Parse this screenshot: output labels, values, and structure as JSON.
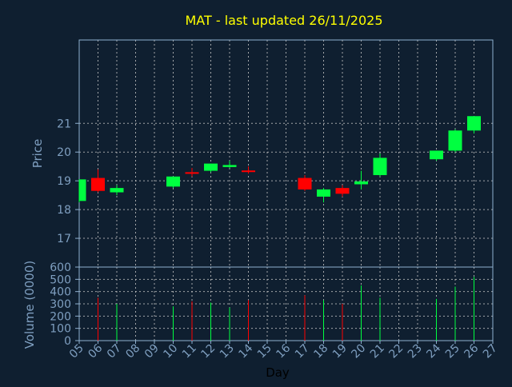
{
  "colors": {
    "background": "#0f1f30",
    "title": "#ffff00",
    "axis_text": "#7f9fc0",
    "frame": "#8fb0d0",
    "grid": "#c8c8c8",
    "up": "#00ff40",
    "down": "#ff0000",
    "xlabel": "#000000"
  },
  "chart_data": {
    "type": "candlestick",
    "title": "MAT - last updated 26/11/2025",
    "xlabel": "Day",
    "ylabel_price": "Price",
    "ylabel_volume": "Volume (0000)",
    "x_ticks": [
      "05",
      "06",
      "07",
      "08",
      "09",
      "10",
      "11",
      "12",
      "13",
      "14",
      "15",
      "16",
      "17",
      "18",
      "19",
      "20",
      "21",
      "22",
      "23",
      "24",
      "25",
      "26",
      "27"
    ],
    "price_ylim": [
      16.0,
      23.9
    ],
    "price_ticks": [
      17,
      18,
      19,
      20,
      21
    ],
    "volume_ylim": [
      0,
      600
    ],
    "volume_ticks": [
      0,
      100,
      200,
      300,
      400,
      500,
      600
    ],
    "grid": true,
    "candles": [
      {
        "day": "05",
        "open": 18.3,
        "high": 19.05,
        "low": 18.25,
        "close": 19.05,
        "volume": 0
      },
      {
        "day": "06",
        "open": 19.1,
        "high": 19.4,
        "low": 18.6,
        "close": 18.65,
        "volume": 350
      },
      {
        "day": "07",
        "open": 18.6,
        "high": 18.85,
        "low": 18.5,
        "close": 18.75,
        "volume": 300
      },
      {
        "day": "10",
        "open": 18.8,
        "high": 19.15,
        "low": 18.75,
        "close": 19.15,
        "volume": 280
      },
      {
        "day": "11",
        "open": 19.3,
        "high": 19.45,
        "low": 19.15,
        "close": 19.25,
        "volume": 320
      },
      {
        "day": "12",
        "open": 19.35,
        "high": 19.6,
        "low": 19.3,
        "close": 19.6,
        "volume": 310
      },
      {
        "day": "13",
        "open": 19.48,
        "high": 19.7,
        "low": 19.45,
        "close": 19.55,
        "volume": 270
      },
      {
        "day": "14",
        "open": 19.36,
        "high": 19.5,
        "low": 19.25,
        "close": 19.31,
        "volume": 330
      },
      {
        "day": "17",
        "open": 19.1,
        "high": 19.2,
        "low": 18.65,
        "close": 18.7,
        "volume": 370
      },
      {
        "day": "18",
        "open": 18.45,
        "high": 18.75,
        "low": 18.25,
        "close": 18.7,
        "volume": 330
      },
      {
        "day": "19",
        "open": 18.75,
        "high": 18.85,
        "low": 18.45,
        "close": 18.55,
        "volume": 300
      },
      {
        "day": "20",
        "open": 18.88,
        "high": 19.35,
        "low": 18.7,
        "close": 18.98,
        "volume": 450
      },
      {
        "day": "21",
        "open": 19.2,
        "high": 19.95,
        "low": 19.15,
        "close": 19.8,
        "volume": 350
      },
      {
        "day": "24",
        "open": 19.75,
        "high": 20.05,
        "low": 19.7,
        "close": 20.05,
        "volume": 340
      },
      {
        "day": "25",
        "open": 20.05,
        "high": 20.8,
        "low": 20.0,
        "close": 20.75,
        "volume": 440
      },
      {
        "day": "26",
        "open": 20.75,
        "high": 21.25,
        "low": 20.65,
        "close": 21.25,
        "volume": 520
      }
    ]
  }
}
